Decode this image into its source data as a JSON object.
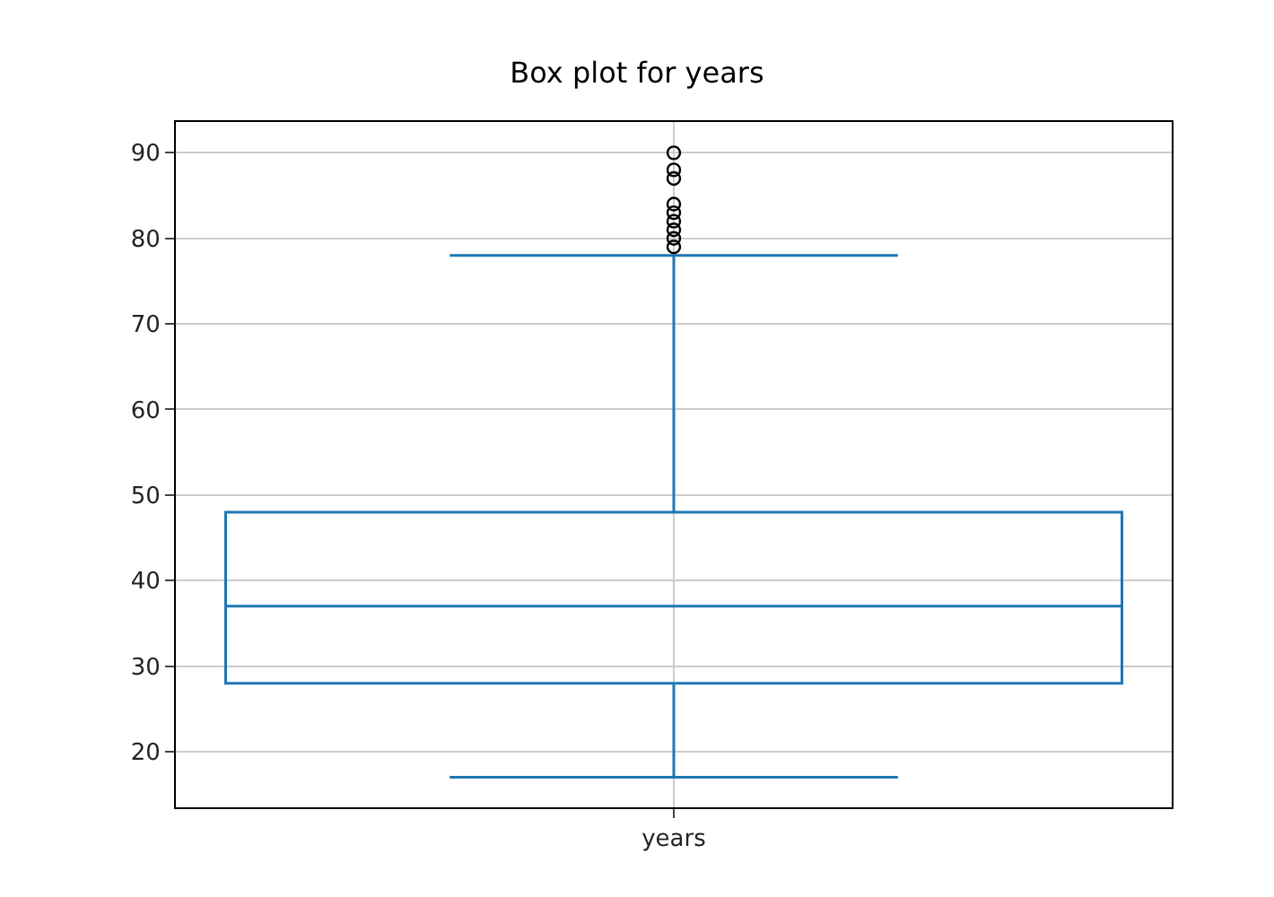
{
  "chart_data": {
    "type": "box",
    "title": "Box plot for years",
    "categories": [
      "years"
    ],
    "color": "#1f77b4",
    "boxes": [
      {
        "low": 17,
        "q1": 28,
        "median": 37,
        "q3": 48,
        "high": 78,
        "outliers": [
          79,
          80,
          81,
          82,
          83,
          84,
          87,
          88,
          90
        ]
      }
    ],
    "ylim": [
      13.5,
      93.6
    ],
    "yticks": [
      20,
      30,
      40,
      50,
      60,
      70,
      80,
      90
    ],
    "grid": true
  }
}
